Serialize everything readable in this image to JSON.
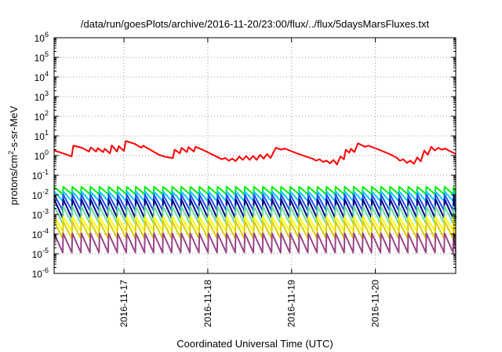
{
  "chart_data": {
    "type": "line",
    "title": "/data/run/goesPlots/archive/2016-11-20/23:00/flux/../flux/5daysMarsFluxes.txt",
    "xlabel": "Coordinated Universal Time (UTC)",
    "ylabel": "protons/cm²-s-sr-MeV",
    "ylabel_parts": {
      "pre": "protons/cm",
      "sup": "2",
      "post": "-s-sr-MeV"
    },
    "log_y": true,
    "xlim": [
      "2016-11-16T04:00",
      "2016-11-20T23:00"
    ],
    "ylim": [
      1e-06,
      1000000.0
    ],
    "x_ticks": [
      "2016-11-17",
      "2016-11-18",
      "2016-11-19",
      "2016-11-20"
    ],
    "y_ticks": [
      {
        "value": 1e-06,
        "base": "10",
        "exp": "-6"
      },
      {
        "value": 1e-05,
        "base": "10",
        "exp": "-5"
      },
      {
        "value": 0.0001,
        "base": "10",
        "exp": "-4"
      },
      {
        "value": 0.001,
        "base": "10",
        "exp": "-3"
      },
      {
        "value": 0.01,
        "base": "10",
        "exp": "-2"
      },
      {
        "value": 0.1,
        "base": "10",
        "exp": "-1"
      },
      {
        "value": 1,
        "base": "10",
        "exp": "0"
      },
      {
        "value": 10,
        "base": "10",
        "exp": "1"
      },
      {
        "value": 100,
        "base": "10",
        "exp": "2"
      },
      {
        "value": 1000,
        "base": "10",
        "exp": "3"
      },
      {
        "value": 10000,
        "base": "10",
        "exp": "4"
      },
      {
        "value": 100000,
        "base": "10",
        "exp": "5"
      },
      {
        "value": 1000000,
        "base": "10",
        "exp": "6"
      }
    ],
    "grid": true,
    "legend": "none",
    "series": [
      {
        "color": "#ff0000",
        "points": [
          [
            "2016-11-16T04:00",
            1.8
          ],
          [
            "2016-11-16T06:00",
            1.4
          ],
          [
            "2016-11-16T09:00",
            0.9
          ],
          [
            "2016-11-16T09:30",
            3.2
          ],
          [
            "2016-11-16T12:00",
            2.5
          ],
          [
            "2016-11-16T14:00",
            1.6
          ],
          [
            "2016-11-16T14:30",
            2.6
          ],
          [
            "2016-11-16T16:00",
            1.6
          ],
          [
            "2016-11-16T16:30",
            2.4
          ],
          [
            "2016-11-16T18:00",
            1.5
          ],
          [
            "2016-11-16T18:30",
            2.2
          ],
          [
            "2016-11-16T20:00",
            1.3
          ],
          [
            "2016-11-16T20:30",
            3.3
          ],
          [
            "2016-11-16T22:00",
            1.6
          ],
          [
            "2016-11-16T22:30",
            3.0
          ],
          [
            "2016-11-17T00:00",
            1.7
          ],
          [
            "2016-11-17T00:30",
            5.5
          ],
          [
            "2016-11-17T03:00",
            4.0
          ],
          [
            "2016-11-17T05:00",
            2.5
          ],
          [
            "2016-11-17T05:30",
            3.2
          ],
          [
            "2016-11-17T07:30",
            2.0
          ],
          [
            "2016-11-17T10:00",
            1.1
          ],
          [
            "2016-11-17T12:00",
            0.85
          ],
          [
            "2016-11-17T14:00",
            0.75
          ],
          [
            "2016-11-17T14:30",
            2.0
          ],
          [
            "2016-11-17T16:00",
            1.3
          ],
          [
            "2016-11-17T16:30",
            2.5
          ],
          [
            "2016-11-17T18:00",
            1.5
          ],
          [
            "2016-11-17T18:30",
            2.7
          ],
          [
            "2016-11-17T20:00",
            1.6
          ],
          [
            "2016-11-17T20:30",
            2.8
          ],
          [
            "2016-11-17T22:30",
            2.0
          ],
          [
            "2016-11-18T01:00",
            1.2
          ],
          [
            "2016-11-18T04:00",
            0.65
          ],
          [
            "2016-11-18T05:00",
            0.75
          ],
          [
            "2016-11-18T06:00",
            0.55
          ],
          [
            "2016-11-18T07:00",
            0.7
          ],
          [
            "2016-11-18T08:00",
            0.52
          ],
          [
            "2016-11-18T09:00",
            0.9
          ],
          [
            "2016-11-18T10:00",
            0.6
          ],
          [
            "2016-11-18T11:00",
            0.95
          ],
          [
            "2016-11-18T12:00",
            0.6
          ],
          [
            "2016-11-18T13:00",
            0.95
          ],
          [
            "2016-11-18T14:00",
            0.6
          ],
          [
            "2016-11-18T15:00",
            1.1
          ],
          [
            "2016-11-18T16:00",
            0.7
          ],
          [
            "2016-11-18T17:00",
            1.2
          ],
          [
            "2016-11-18T18:00",
            0.75
          ],
          [
            "2016-11-18T19:30",
            2.5
          ],
          [
            "2016-11-18T21:00",
            2.0
          ],
          [
            "2016-11-18T22:00",
            2.3
          ],
          [
            "2016-11-19T01:00",
            1.4
          ],
          [
            "2016-11-19T04:00",
            0.9
          ],
          [
            "2016-11-19T06:00",
            0.7
          ],
          [
            "2016-11-19T07:00",
            0.55
          ],
          [
            "2016-11-19T08:00",
            0.65
          ],
          [
            "2016-11-19T09:00",
            0.48
          ],
          [
            "2016-11-19T10:00",
            0.55
          ],
          [
            "2016-11-19T11:00",
            0.4
          ],
          [
            "2016-11-19T12:00",
            0.6
          ],
          [
            "2016-11-19T13:00",
            0.35
          ],
          [
            "2016-11-19T14:00",
            0.9
          ],
          [
            "2016-11-19T15:00",
            0.65
          ],
          [
            "2016-11-19T15:30",
            2.0
          ],
          [
            "2016-11-19T16:30",
            1.4
          ],
          [
            "2016-11-19T17:00",
            2.2
          ],
          [
            "2016-11-19T18:00",
            1.5
          ],
          [
            "2016-11-19T19:00",
            4.2
          ],
          [
            "2016-11-19T21:00",
            2.8
          ],
          [
            "2016-11-19T22:00",
            3.2
          ],
          [
            "2016-11-20T01:00",
            2.0
          ],
          [
            "2016-11-20T04:00",
            1.2
          ],
          [
            "2016-11-20T06:00",
            0.8
          ],
          [
            "2016-11-20T07:00",
            0.55
          ],
          [
            "2016-11-20T08:00",
            0.65
          ],
          [
            "2016-11-20T09:00",
            0.42
          ],
          [
            "2016-11-20T10:00",
            0.55
          ],
          [
            "2016-11-20T11:00",
            0.38
          ],
          [
            "2016-11-20T12:00",
            0.8
          ],
          [
            "2016-11-20T13:00",
            0.5
          ],
          [
            "2016-11-20T14:00",
            1.8
          ],
          [
            "2016-11-20T15:00",
            1.1
          ],
          [
            "2016-11-20T16:00",
            2.8
          ],
          [
            "2016-11-20T17:00",
            1.8
          ],
          [
            "2016-11-20T18:00",
            2.5
          ],
          [
            "2016-11-20T19:00",
            2.0
          ],
          [
            "2016-11-20T20:00",
            2.3
          ],
          [
            "2016-11-20T21:00",
            1.8
          ],
          [
            "2016-11-20T23:00",
            1.2
          ]
        ]
      },
      {
        "color": "#00ee00",
        "sawtooth": {
          "peak": 0.026,
          "trough": 0.0108,
          "period_hours": 2.6
        }
      },
      {
        "color": "#00ccff",
        "sawtooth": {
          "peak": 0.015,
          "trough": 0.0048,
          "period_hours": 2.6
        }
      },
      {
        "color": "#1e50ff",
        "sawtooth": {
          "peak": 0.0105,
          "trough": 0.0016,
          "period_hours": 2.6
        }
      },
      {
        "color": "#00008b",
        "sawtooth": {
          "peak": 0.006,
          "trough": 0.00065,
          "period_hours": 2.6
        }
      },
      {
        "color": "#66dd99",
        "sawtooth": {
          "peak": 0.0026,
          "trough": 0.00035,
          "period_hours": 2.6
        }
      },
      {
        "color": "#ffff00",
        "sawtooth": {
          "peak": 0.00075,
          "trough": 0.00014,
          "period_hours": 2.6
        }
      },
      {
        "color": "#ddcc00",
        "sawtooth": {
          "peak": 0.00045,
          "trough": 6e-05,
          "period_hours": 2.6
        }
      },
      {
        "color": "#994488",
        "sawtooth": {
          "peak": 0.00011,
          "trough": 1.15e-05,
          "period_hours": 2.6
        }
      }
    ]
  }
}
